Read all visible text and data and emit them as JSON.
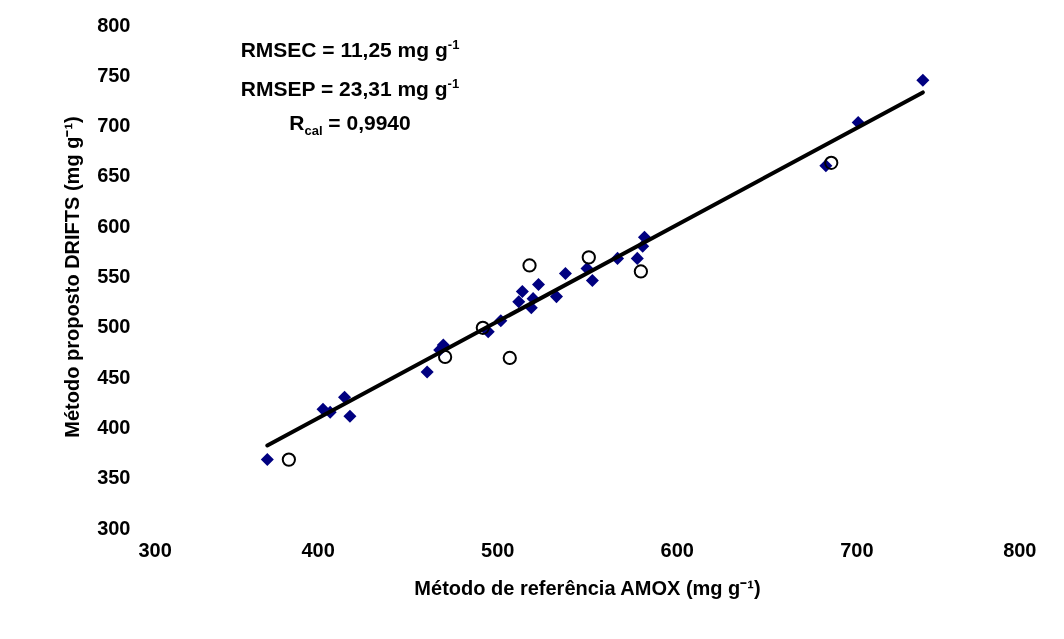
{
  "chart_data": {
    "type": "scatter",
    "xlabel": "Método de referência AMOX (mg g⁻¹)",
    "ylabel": "Método proposto DRIFTS (mg g⁻¹)",
    "xlim": [
      300,
      800
    ],
    "xticks": [
      300,
      400,
      500,
      600,
      700,
      800
    ],
    "ylim": [
      300,
      800
    ],
    "yticks": [
      300,
      350,
      400,
      450,
      500,
      550,
      600,
      650,
      700,
      750,
      800
    ],
    "grid": false,
    "annotations": [
      "RMSEC = 11,25 mg g$^{-1}$",
      "RMSEP = 23,31 mg g$^{-1}$",
      "R$_{cal}$ = 0,9940"
    ],
    "series": [
      {
        "marker": "diamond",
        "color": "#000080",
        "x": [
          372,
          403,
          407,
          415,
          418,
          461,
          468,
          470,
          495,
          502,
          512,
          514,
          519,
          520,
          523,
          533,
          538,
          550,
          553,
          567,
          578,
          581,
          582,
          683,
          701,
          737
        ],
        "values": [
          368,
          418,
          415,
          430,
          411,
          455,
          477,
          482,
          495,
          506,
          525,
          535,
          519,
          528,
          542,
          530,
          553,
          558,
          546,
          568,
          568,
          580,
          589,
          660,
          703,
          745
        ]
      },
      {
        "marker": "circle",
        "color": "#000000",
        "x": [
          384,
          471,
          492,
          507,
          518,
          551,
          580,
          686
        ],
        "values": [
          368,
          470,
          499,
          469,
          561,
          569,
          555,
          663
        ]
      },
      {
        "type": "line",
        "color": "#000000",
        "x": [
          372,
          737
        ],
        "values": [
          382,
          733
        ]
      }
    ]
  }
}
